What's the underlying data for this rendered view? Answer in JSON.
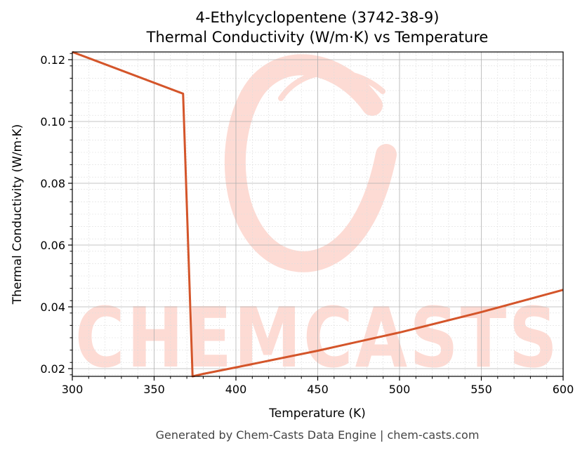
{
  "chart_data": {
    "type": "line",
    "title": "4-Ethylcyclopentene (3742-38-9)",
    "subtitle": "Thermal Conductivity (W/m·K) vs Temperature",
    "xlabel": "Temperature (K)",
    "ylabel": "Thermal Conductivity (W/m·K)",
    "xlim": [
      300,
      600
    ],
    "ylim": [
      0.0175,
      0.1225
    ],
    "x_ticks": [
      300,
      350,
      400,
      450,
      500,
      550,
      600
    ],
    "x_tick_labels": [
      "300",
      "350",
      "400",
      "450",
      "500",
      "550",
      "600"
    ],
    "y_ticks": [
      0.02,
      0.04,
      0.06,
      0.08,
      0.1,
      0.12
    ],
    "y_tick_labels": [
      "0.02",
      "0.04",
      "0.06",
      "0.08",
      "0.10",
      "0.12"
    ],
    "grid": true,
    "series": [
      {
        "color": "#d4552a",
        "x": [
          300,
          367.7,
          373.5,
          380,
          400,
          450,
          500,
          550,
          600
        ],
        "y": [
          0.1225,
          0.109,
          0.0175,
          0.0183,
          0.0204,
          0.0258,
          0.0317,
          0.0383,
          0.0455
        ]
      }
    ]
  },
  "watermark": {
    "text": "CHEMCASTS",
    "color": "#fddbd4"
  },
  "footer": "Generated by Chem-Casts Data Engine | chem-casts.com"
}
